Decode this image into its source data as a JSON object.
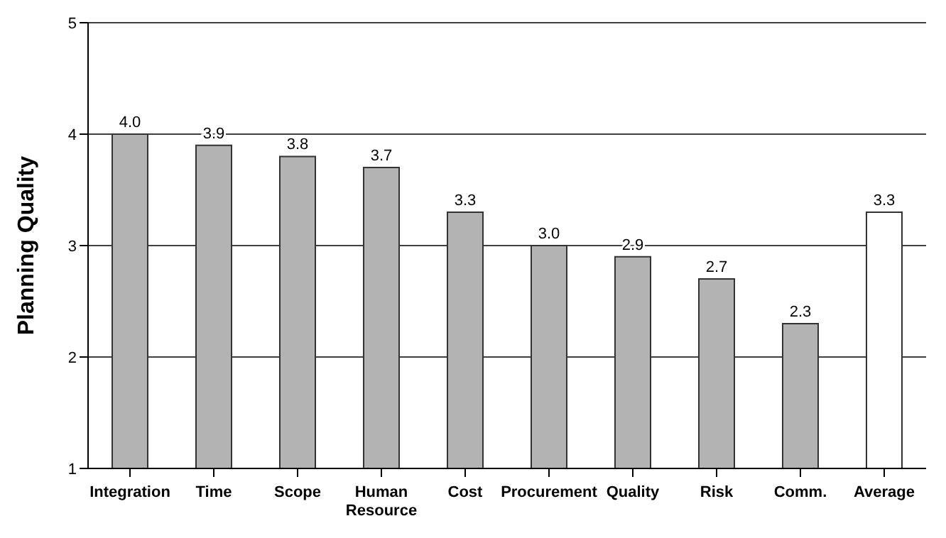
{
  "chart_data": {
    "type": "bar",
    "ylabel": "Planning Quality",
    "categories": [
      "Integration",
      "Time",
      "Scope",
      "Human Resource",
      "Cost",
      "Procurement",
      "Quality",
      "Risk",
      "Comm.",
      "Average"
    ],
    "values": [
      4.0,
      3.9,
      3.8,
      3.7,
      3.3,
      3.0,
      2.9,
      2.7,
      2.3,
      3.3
    ],
    "value_labels": [
      "4.0",
      "3.9",
      "3.8",
      "3.7",
      "3.3",
      "3.0",
      "2.9",
      "2.7",
      "2.3",
      "3.3"
    ],
    "colors": [
      "#b3b3b3",
      "#b3b3b3",
      "#b3b3b3",
      "#b3b3b3",
      "#b3b3b3",
      "#b3b3b3",
      "#b3b3b3",
      "#b3b3b3",
      "#b3b3b3",
      "#ffffff"
    ],
    "ylim": [
      1,
      5
    ],
    "yticks": [
      1,
      2,
      3,
      4,
      5
    ],
    "grid": "y"
  }
}
